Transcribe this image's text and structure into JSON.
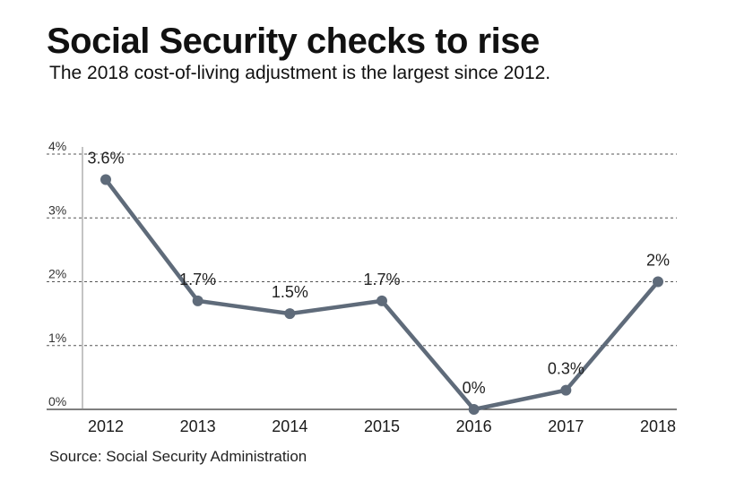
{
  "title": "Social Security checks to rise",
  "subtitle": "The 2018 cost-of-living adjustment is the largest since 2012.",
  "source": "Source: Social Security Administration",
  "colors": {
    "line": "#5f6b7a",
    "grid": "#555555",
    "text": "#1a1a1a"
  },
  "chart_data": {
    "type": "line",
    "title": "Social Security checks to rise",
    "subtitle": "The 2018 cost-of-living adjustment is the largest since 2012.",
    "xlabel": "",
    "ylabel": "",
    "categories": [
      "2012",
      "2013",
      "2014",
      "2015",
      "2016",
      "2017",
      "2018"
    ],
    "values": [
      3.6,
      1.7,
      1.5,
      1.7,
      0,
      0.3,
      2
    ],
    "data_labels": [
      "3.6%",
      "1.7%",
      "1.5%",
      "1.7%",
      "0%",
      "0.3%",
      "2%"
    ],
    "ylim": [
      0,
      4
    ],
    "y_ticks": [
      0,
      1,
      2,
      3,
      4
    ],
    "y_tick_labels": [
      "0%",
      "1%",
      "2%",
      "3%",
      "4%"
    ],
    "grid": "dashed horizontal",
    "legend": "none"
  }
}
